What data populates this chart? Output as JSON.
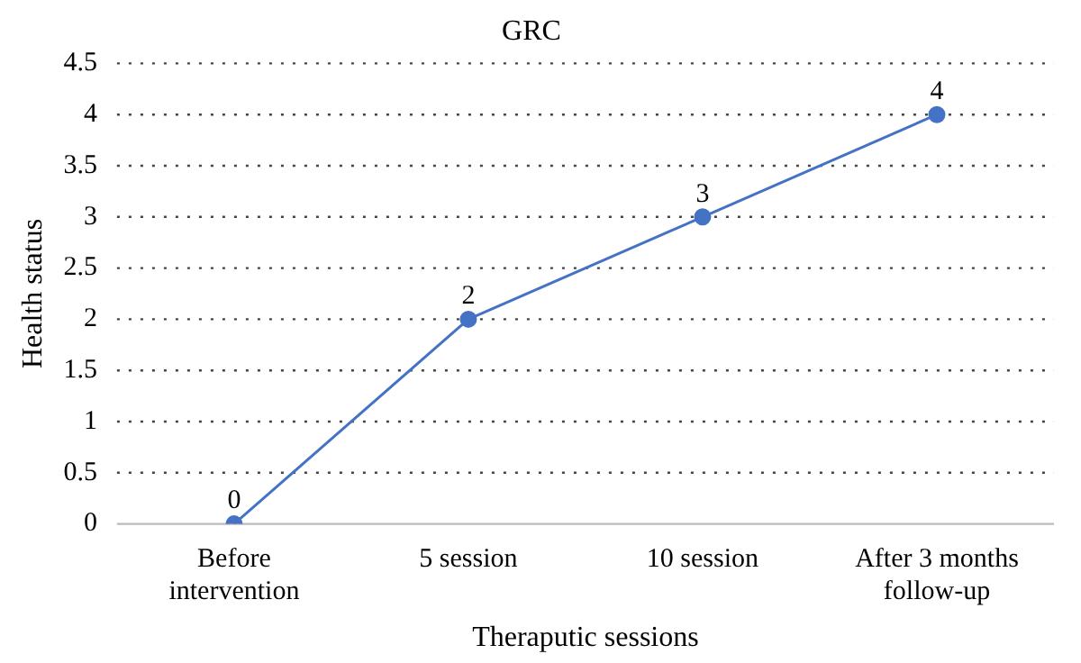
{
  "chart_data": {
    "type": "line",
    "title": "GRC",
    "xlabel": "Theraputic sessions",
    "ylabel": "Health status",
    "categories": [
      "Before intervention",
      "5 session",
      "10 session",
      "After 3 months follow-up"
    ],
    "series": [
      {
        "color": "#4472c4",
        "values": [
          0,
          2,
          3,
          4
        ]
      }
    ],
    "ylim": [
      0,
      4.5
    ],
    "yticks": [
      0,
      0.5,
      1,
      1.5,
      2,
      2.5,
      3,
      3.5,
      4,
      4.5
    ],
    "grid": "y",
    "legend": false,
    "marker": "circle",
    "line_style": "solid",
    "data_labels": true
  }
}
